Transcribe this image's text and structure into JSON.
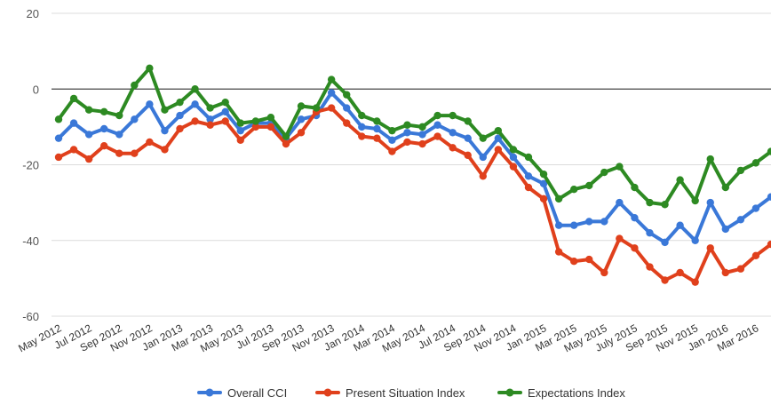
{
  "chart_data": {
    "type": "line",
    "title": "",
    "xlabel": "",
    "ylabel": "",
    "ylim": [
      -60,
      20
    ],
    "y_ticks": [
      "20",
      "0",
      "-20",
      "-40",
      "-60"
    ],
    "y_tick_values": [
      20,
      0,
      -20,
      -40,
      -60
    ],
    "grid": true,
    "zero_line": true,
    "legend_position": "bottom",
    "x_tick_labels": [
      "May 2012",
      "Jul 2012",
      "Sep 2012",
      "Nov 2012",
      "Jan 2013",
      "Mar 2013",
      "May 2013",
      "Jul 2013",
      "Sep 2013",
      "Nov 2013",
      "Jan 2014",
      "Mar 2014",
      "May 2014",
      "Jul 2014",
      "Sep 2014",
      "Nov 2014",
      "Jan 2015",
      "Mar 2015",
      "May 2015",
      "July 2015",
      "Sep 2015",
      "Nov 2015",
      "Jan 2016",
      "Mar 2016"
    ],
    "series": [
      {
        "name": "Overall CCI",
        "color": "#3a78d8",
        "values": [
          -13,
          -9,
          -12,
          -10.5,
          -12,
          -8,
          -4,
          -11,
          -7,
          -4,
          -8,
          -6,
          -11,
          -9,
          -9,
          -13,
          -8,
          -7,
          -1,
          -5,
          -10,
          -10.5,
          -13.5,
          -11.5,
          -12,
          -9.5,
          -11.5,
          -13,
          -18,
          -13,
          -18,
          -23,
          -25,
          -36,
          -36,
          -35,
          -35,
          -30,
          -34,
          -38,
          -40.5,
          -36,
          -40,
          -30,
          -37,
          -34.5,
          -31.5,
          -28.5
        ]
      },
      {
        "name": "Present Situation Index",
        "color": "#e0401c",
        "values": [
          -18,
          -16,
          -18.5,
          -15,
          -17,
          -17,
          -14,
          -16,
          -10.5,
          -8.5,
          -9.5,
          -8.5,
          -13.5,
          -10,
          -10,
          -14.5,
          -11.5,
          -6,
          -5,
          -9,
          -12.5,
          -13,
          -16.5,
          -14,
          -14.5,
          -12.5,
          -15.5,
          -17.5,
          -23,
          -16,
          -20.5,
          -26,
          -29,
          -43,
          -45.5,
          -45,
          -48.5,
          -39.5,
          -42,
          -47,
          -50.5,
          -48.5,
          -51,
          -42,
          -48.5,
          -47.5,
          -44,
          -41
        ]
      },
      {
        "name": "Expectations Index",
        "color": "#2d8a22",
        "values": [
          -8,
          -2.5,
          -5.5,
          -6,
          -7,
          1,
          5.5,
          -5.5,
          -3.5,
          0,
          -5,
          -3.5,
          -9,
          -8.5,
          -7.5,
          -12.5,
          -4.5,
          -5,
          2.5,
          -1.5,
          -7,
          -8.5,
          -11,
          -9.5,
          -10,
          -7,
          -7,
          -8.5,
          -13,
          -11,
          -16,
          -18,
          -22.5,
          -29,
          -26.5,
          -25.5,
          -22,
          -20.5,
          -26,
          -30,
          -30.5,
          -24,
          -29.5,
          -18.5,
          -26,
          -21.5,
          -19.5,
          -16.5
        ]
      }
    ]
  }
}
